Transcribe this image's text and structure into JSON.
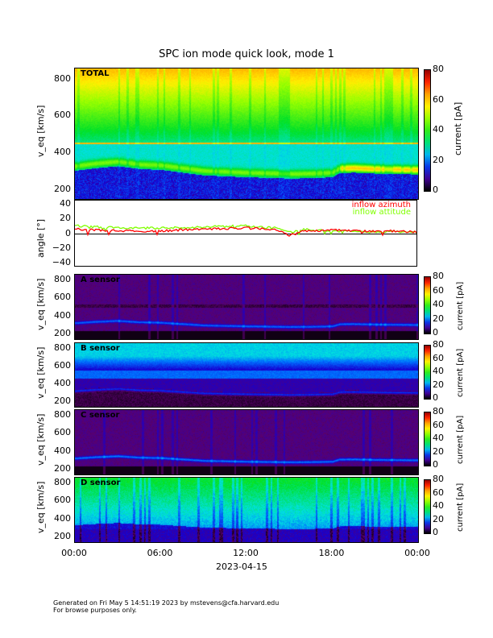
{
  "title": "SPC ion mode quick look, mode 1",
  "x_axis": {
    "ticks": [
      "00:00",
      "06:00",
      "12:00",
      "18:00",
      "00:00"
    ],
    "date_label": "2023-04-15",
    "range_hours": [
      0,
      24
    ]
  },
  "colorbar": {
    "label": "current [pA]",
    "ticks": [
      "0",
      "20",
      "40",
      "60",
      "80"
    ],
    "range": [
      0,
      80
    ],
    "colormap": "rainbow"
  },
  "footer": {
    "line1": "Generated on Fri May  5 14:51:19 2023 by mstevens@cfa.harvard.edu",
    "line2": "For browse purposes only."
  },
  "chart_data": [
    {
      "type": "heatmap",
      "panel_label": "TOTAL",
      "ylabel": "v_eq [km/s]",
      "yticks": [
        "200",
        "400",
        "600",
        "800"
      ],
      "ylim": [
        150,
        860
      ]
    },
    {
      "type": "line",
      "ylabel": "angle [°]",
      "yticks": [
        "40",
        "20",
        "0",
        "−20",
        "−40"
      ],
      "ylim": [
        -45,
        45
      ],
      "x_hours": [
        0,
        2,
        4,
        6,
        8,
        10,
        12,
        14,
        15,
        16,
        18,
        20,
        22,
        24
      ],
      "series": [
        {
          "name": "inflow azimuth",
          "color": "#ff0000",
          "values": [
            7,
            5,
            4,
            4,
            6,
            7,
            8,
            6,
            -2,
            4,
            5,
            4,
            4,
            3
          ]
        },
        {
          "name": "inflow attitude",
          "color": "#80ff00",
          "values": [
            11,
            9,
            8,
            8,
            9,
            10,
            11,
            8,
            2,
            6,
            4,
            3,
            3,
            3
          ]
        }
      ]
    },
    {
      "type": "heatmap",
      "panel_label": "A sensor",
      "ylabel": "v_eq [km/s]",
      "yticks": [
        "200",
        "400",
        "600",
        "800"
      ],
      "ylim": [
        150,
        860
      ]
    },
    {
      "type": "heatmap",
      "panel_label": "B sensor",
      "ylabel": "v_eq [km/s]",
      "yticks": [
        "200",
        "400",
        "600",
        "800"
      ],
      "ylim": [
        150,
        860
      ]
    },
    {
      "type": "heatmap",
      "panel_label": "C sensor",
      "ylabel": "v_eq [km/s]",
      "yticks": [
        "200",
        "400",
        "600",
        "800"
      ],
      "ylim": [
        150,
        860
      ]
    },
    {
      "type": "heatmap",
      "panel_label": "D sensor",
      "ylabel": "v_eq [km/s]",
      "yticks": [
        "200",
        "400",
        "600",
        "800"
      ],
      "ylim": [
        150,
        860
      ]
    }
  ],
  "peak_speed": {
    "x_hours": [
      0,
      1.5,
      3,
      4.5,
      6,
      7.5,
      9,
      10.5,
      12,
      13.5,
      15,
      16.5,
      18,
      18.5,
      19.5,
      21,
      24
    ],
    "values_kms": [
      330,
      345,
      355,
      340,
      335,
      320,
      305,
      300,
      295,
      292,
      288,
      290,
      295,
      318,
      320,
      315,
      310
    ]
  }
}
